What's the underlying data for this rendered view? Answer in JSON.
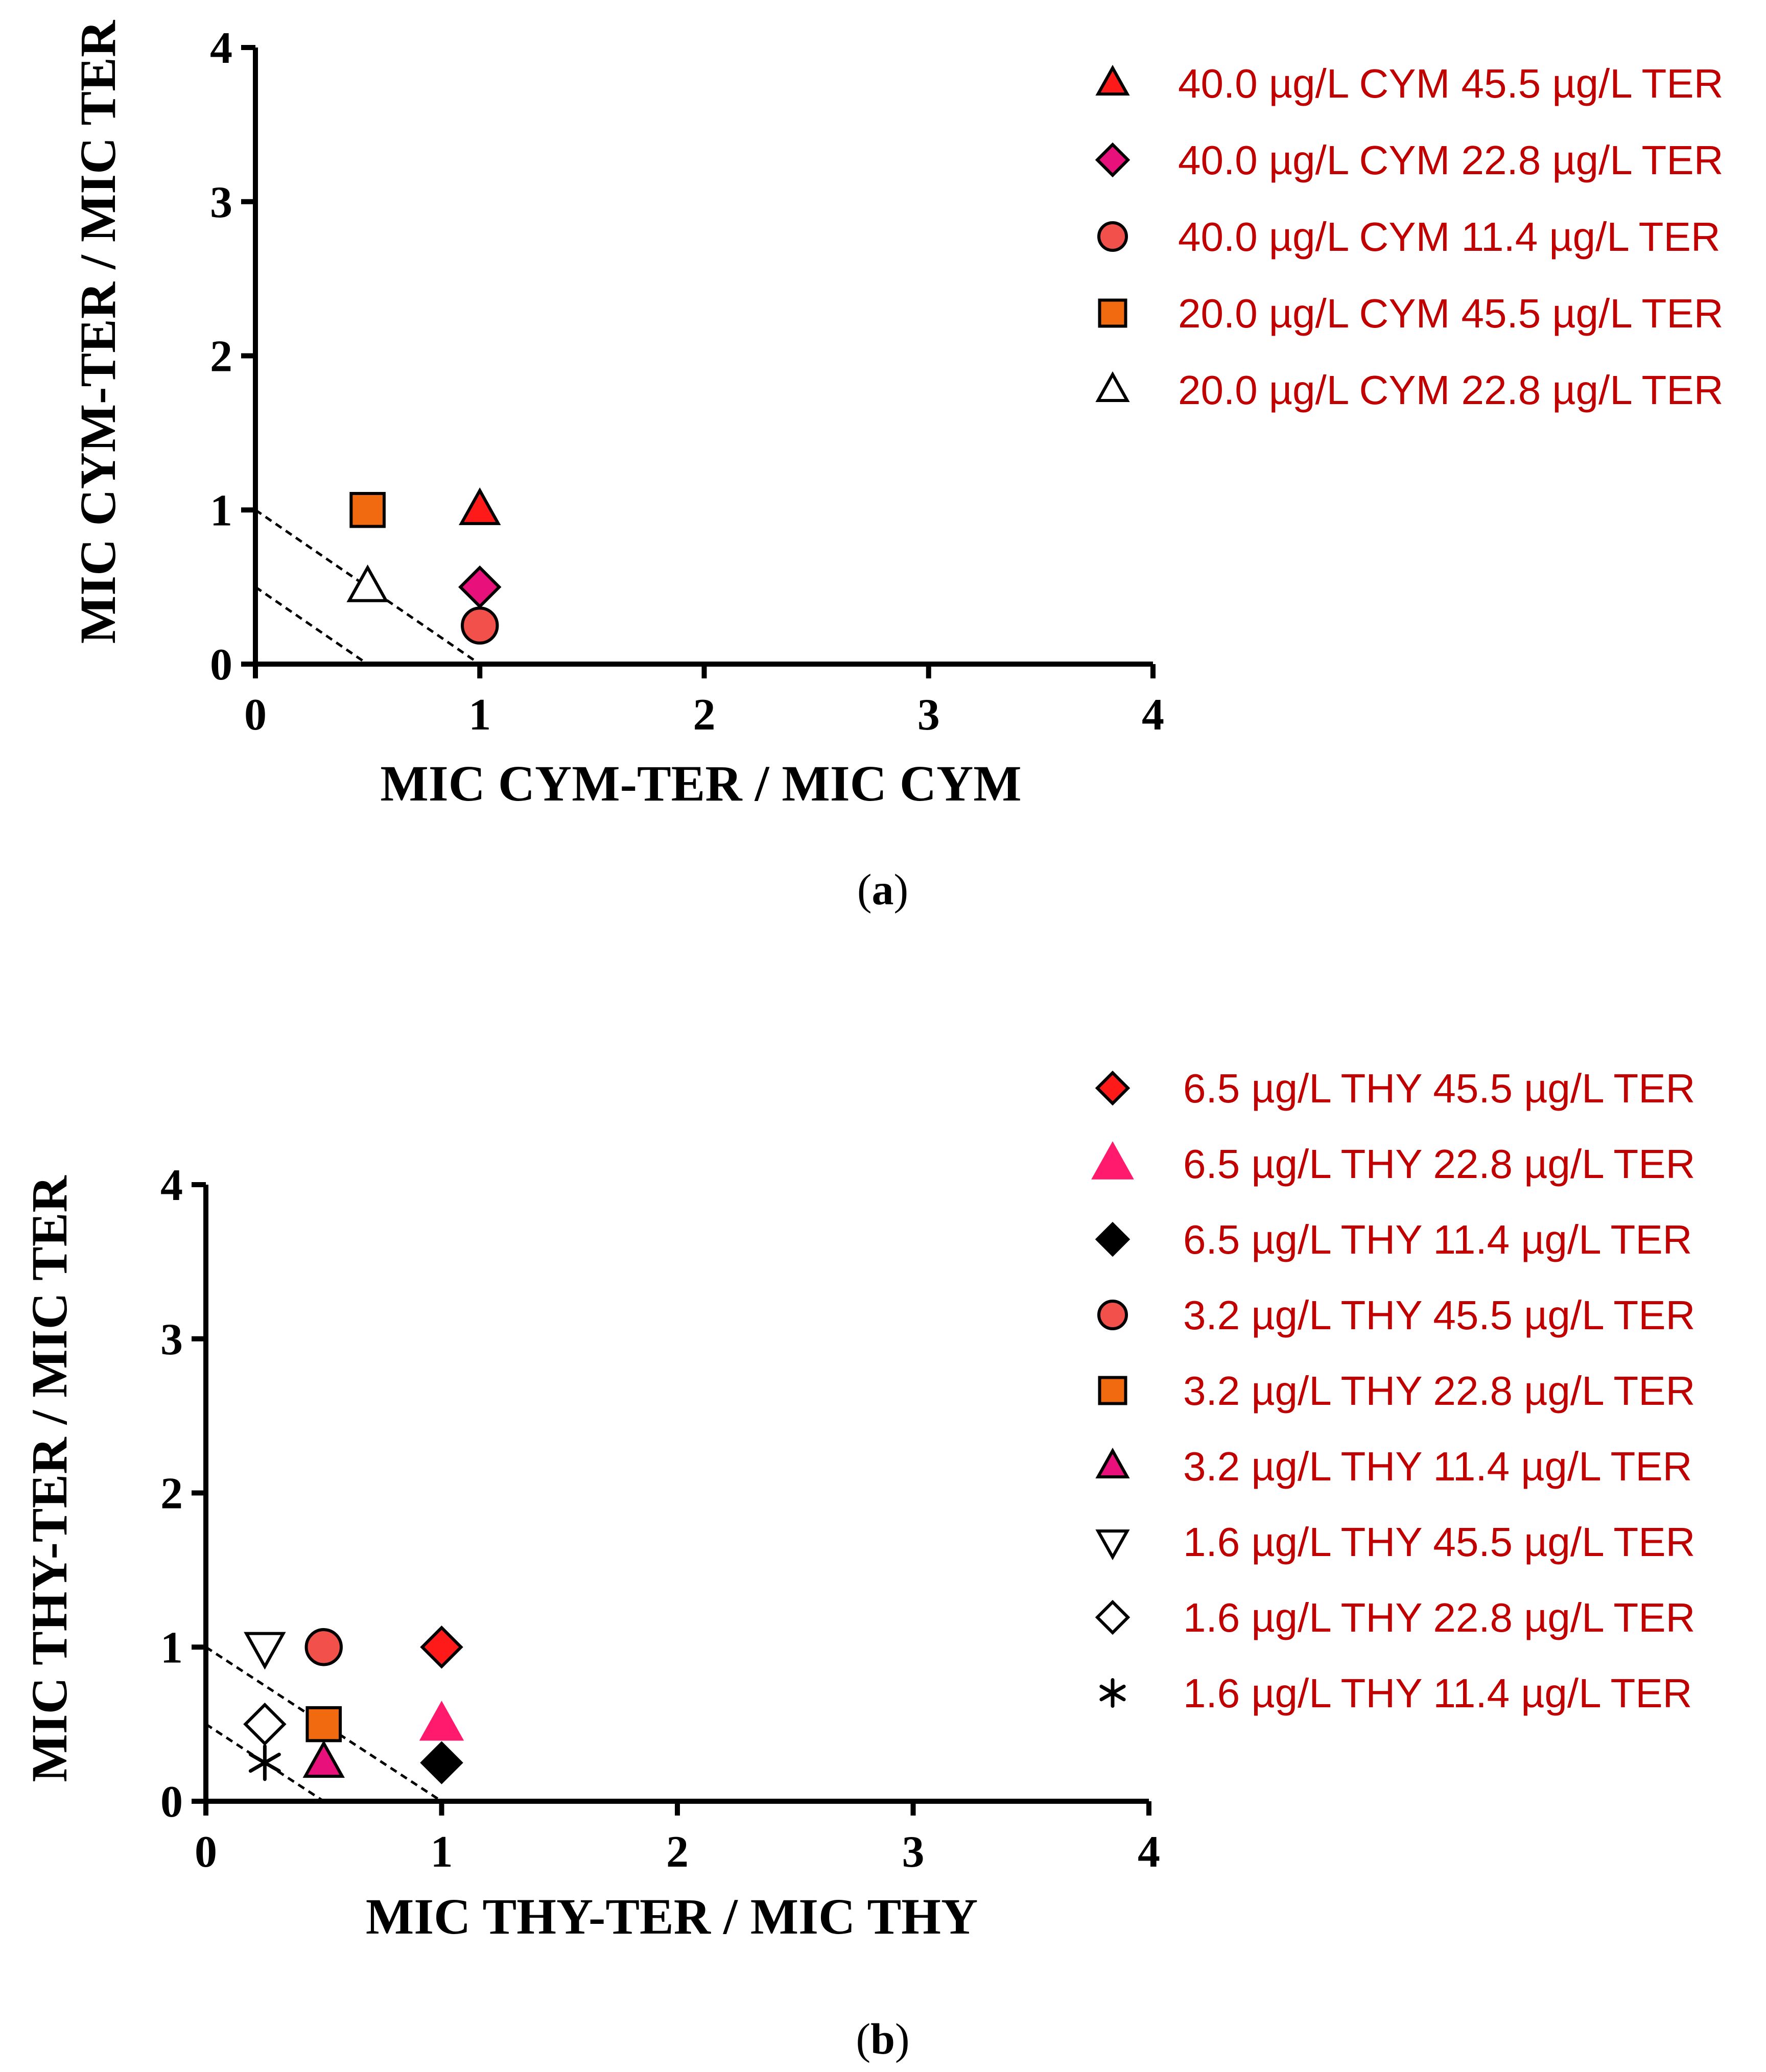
{
  "chart_data": [
    {
      "type": "scatter",
      "panel_label": "a",
      "title": "",
      "xlabel": "MIC CYM-TER / MIC CYM",
      "ylabel": "MIC CYM-TER / MIC TER",
      "xlim": [
        0,
        4
      ],
      "ylim": [
        0,
        4
      ],
      "xticks": [
        "0",
        "1",
        "2",
        "3",
        "4"
      ],
      "yticks": [
        "0",
        "1",
        "2",
        "3",
        "4"
      ],
      "grid": false,
      "legend_position": "right",
      "reference_lines": [
        {
          "x": [
            0,
            1
          ],
          "y": [
            1,
            0
          ],
          "style": "dashed"
        },
        {
          "x": [
            0,
            0.5
          ],
          "y": [
            0.5,
            0
          ],
          "style": "dashed"
        }
      ],
      "series": [
        {
          "name": "40.0 µg/L CYM 45.5 µg/L TER",
          "marker": "triangle-up",
          "color": "#ff1a1a",
          "filled": true,
          "points": [
            [
              1,
              1
            ]
          ]
        },
        {
          "name": "40.0 µg/L CYM 22.8 µg/L TER",
          "marker": "diamond",
          "color": "#e8107a",
          "filled": true,
          "points": [
            [
              1,
              0.5
            ]
          ]
        },
        {
          "name": "40.0 µg/L CYM 11.4 µg/L TER",
          "marker": "circle",
          "color": "#f2504b",
          "filled": true,
          "points": [
            [
              1,
              0.25
            ]
          ]
        },
        {
          "name": "20.0 µg/L CYM 45.5 µg/L TER",
          "marker": "square",
          "color": "#f26a10",
          "filled": true,
          "points": [
            [
              0.5,
              1
            ]
          ]
        },
        {
          "name": "20.0 µg/L CYM 22.8 µg/L TER",
          "marker": "triangle-up",
          "color": "#ffffff",
          "filled": false,
          "points": [
            [
              0.5,
              0.5
            ]
          ]
        }
      ]
    },
    {
      "type": "scatter",
      "panel_label": "b",
      "title": "",
      "xlabel": "MIC THY-TER / MIC THY",
      "ylabel": "MIC THY-TER / MIC TER",
      "xlim": [
        0,
        4
      ],
      "ylim": [
        0,
        4
      ],
      "xticks": [
        "0",
        "1",
        "2",
        "3",
        "4"
      ],
      "yticks": [
        "0",
        "1",
        "2",
        "3",
        "4"
      ],
      "grid": false,
      "legend_position": "right",
      "reference_lines": [
        {
          "x": [
            0,
            1
          ],
          "y": [
            1,
            0
          ],
          "style": "dashed"
        },
        {
          "x": [
            0,
            0.5
          ],
          "y": [
            0.5,
            0
          ],
          "style": "dashed"
        }
      ],
      "series": [
        {
          "name": "6.5 µg/L THY 45.5 µg/L TER",
          "marker": "diamond",
          "color": "#ff1a1a",
          "filled": true,
          "points": [
            [
              1,
              1
            ]
          ]
        },
        {
          "name": "6.5 µg/L THY 22.8 µg/L TER",
          "marker": "triangle-up-plain",
          "color": "#ff1a6e",
          "filled": true,
          "points": [
            [
              1,
              0.5
            ]
          ]
        },
        {
          "name": "6.5 µg/L THY 11.4 µg/L TER",
          "marker": "diamond",
          "color": "#000000",
          "filled": true,
          "points": [
            [
              1,
              0.25
            ]
          ]
        },
        {
          "name": "3.2 µg/L THY 45.5 µg/L TER",
          "marker": "circle",
          "color": "#f2504b",
          "filled": true,
          "points": [
            [
              0.5,
              1
            ]
          ]
        },
        {
          "name": "3.2 µg/L THY 22.8 µg/L TER",
          "marker": "square",
          "color": "#f26a10",
          "filled": true,
          "points": [
            [
              0.5,
              0.5
            ]
          ]
        },
        {
          "name": "3.2 µg/L THY 11.4 µg/L TER",
          "marker": "triangle-up",
          "color": "#e8107a",
          "filled": true,
          "points": [
            [
              0.5,
              0.25
            ]
          ]
        },
        {
          "name": "1.6 µg/L THY 45.5 µg/L TER",
          "marker": "triangle-down",
          "color": "#ffffff",
          "filled": false,
          "points": [
            [
              0.25,
              1
            ]
          ]
        },
        {
          "name": "1.6 µg/L THY 22.8 µg/L TER",
          "marker": "diamond",
          "color": "#ffffff",
          "filled": false,
          "points": [
            [
              0.25,
              0.5
            ]
          ]
        },
        {
          "name": "1.6 µg/L THY 11.4 µg/L TER",
          "marker": "asterisk",
          "color": "#000000",
          "filled": true,
          "points": [
            [
              0.25,
              0.25
            ]
          ]
        }
      ]
    }
  ]
}
